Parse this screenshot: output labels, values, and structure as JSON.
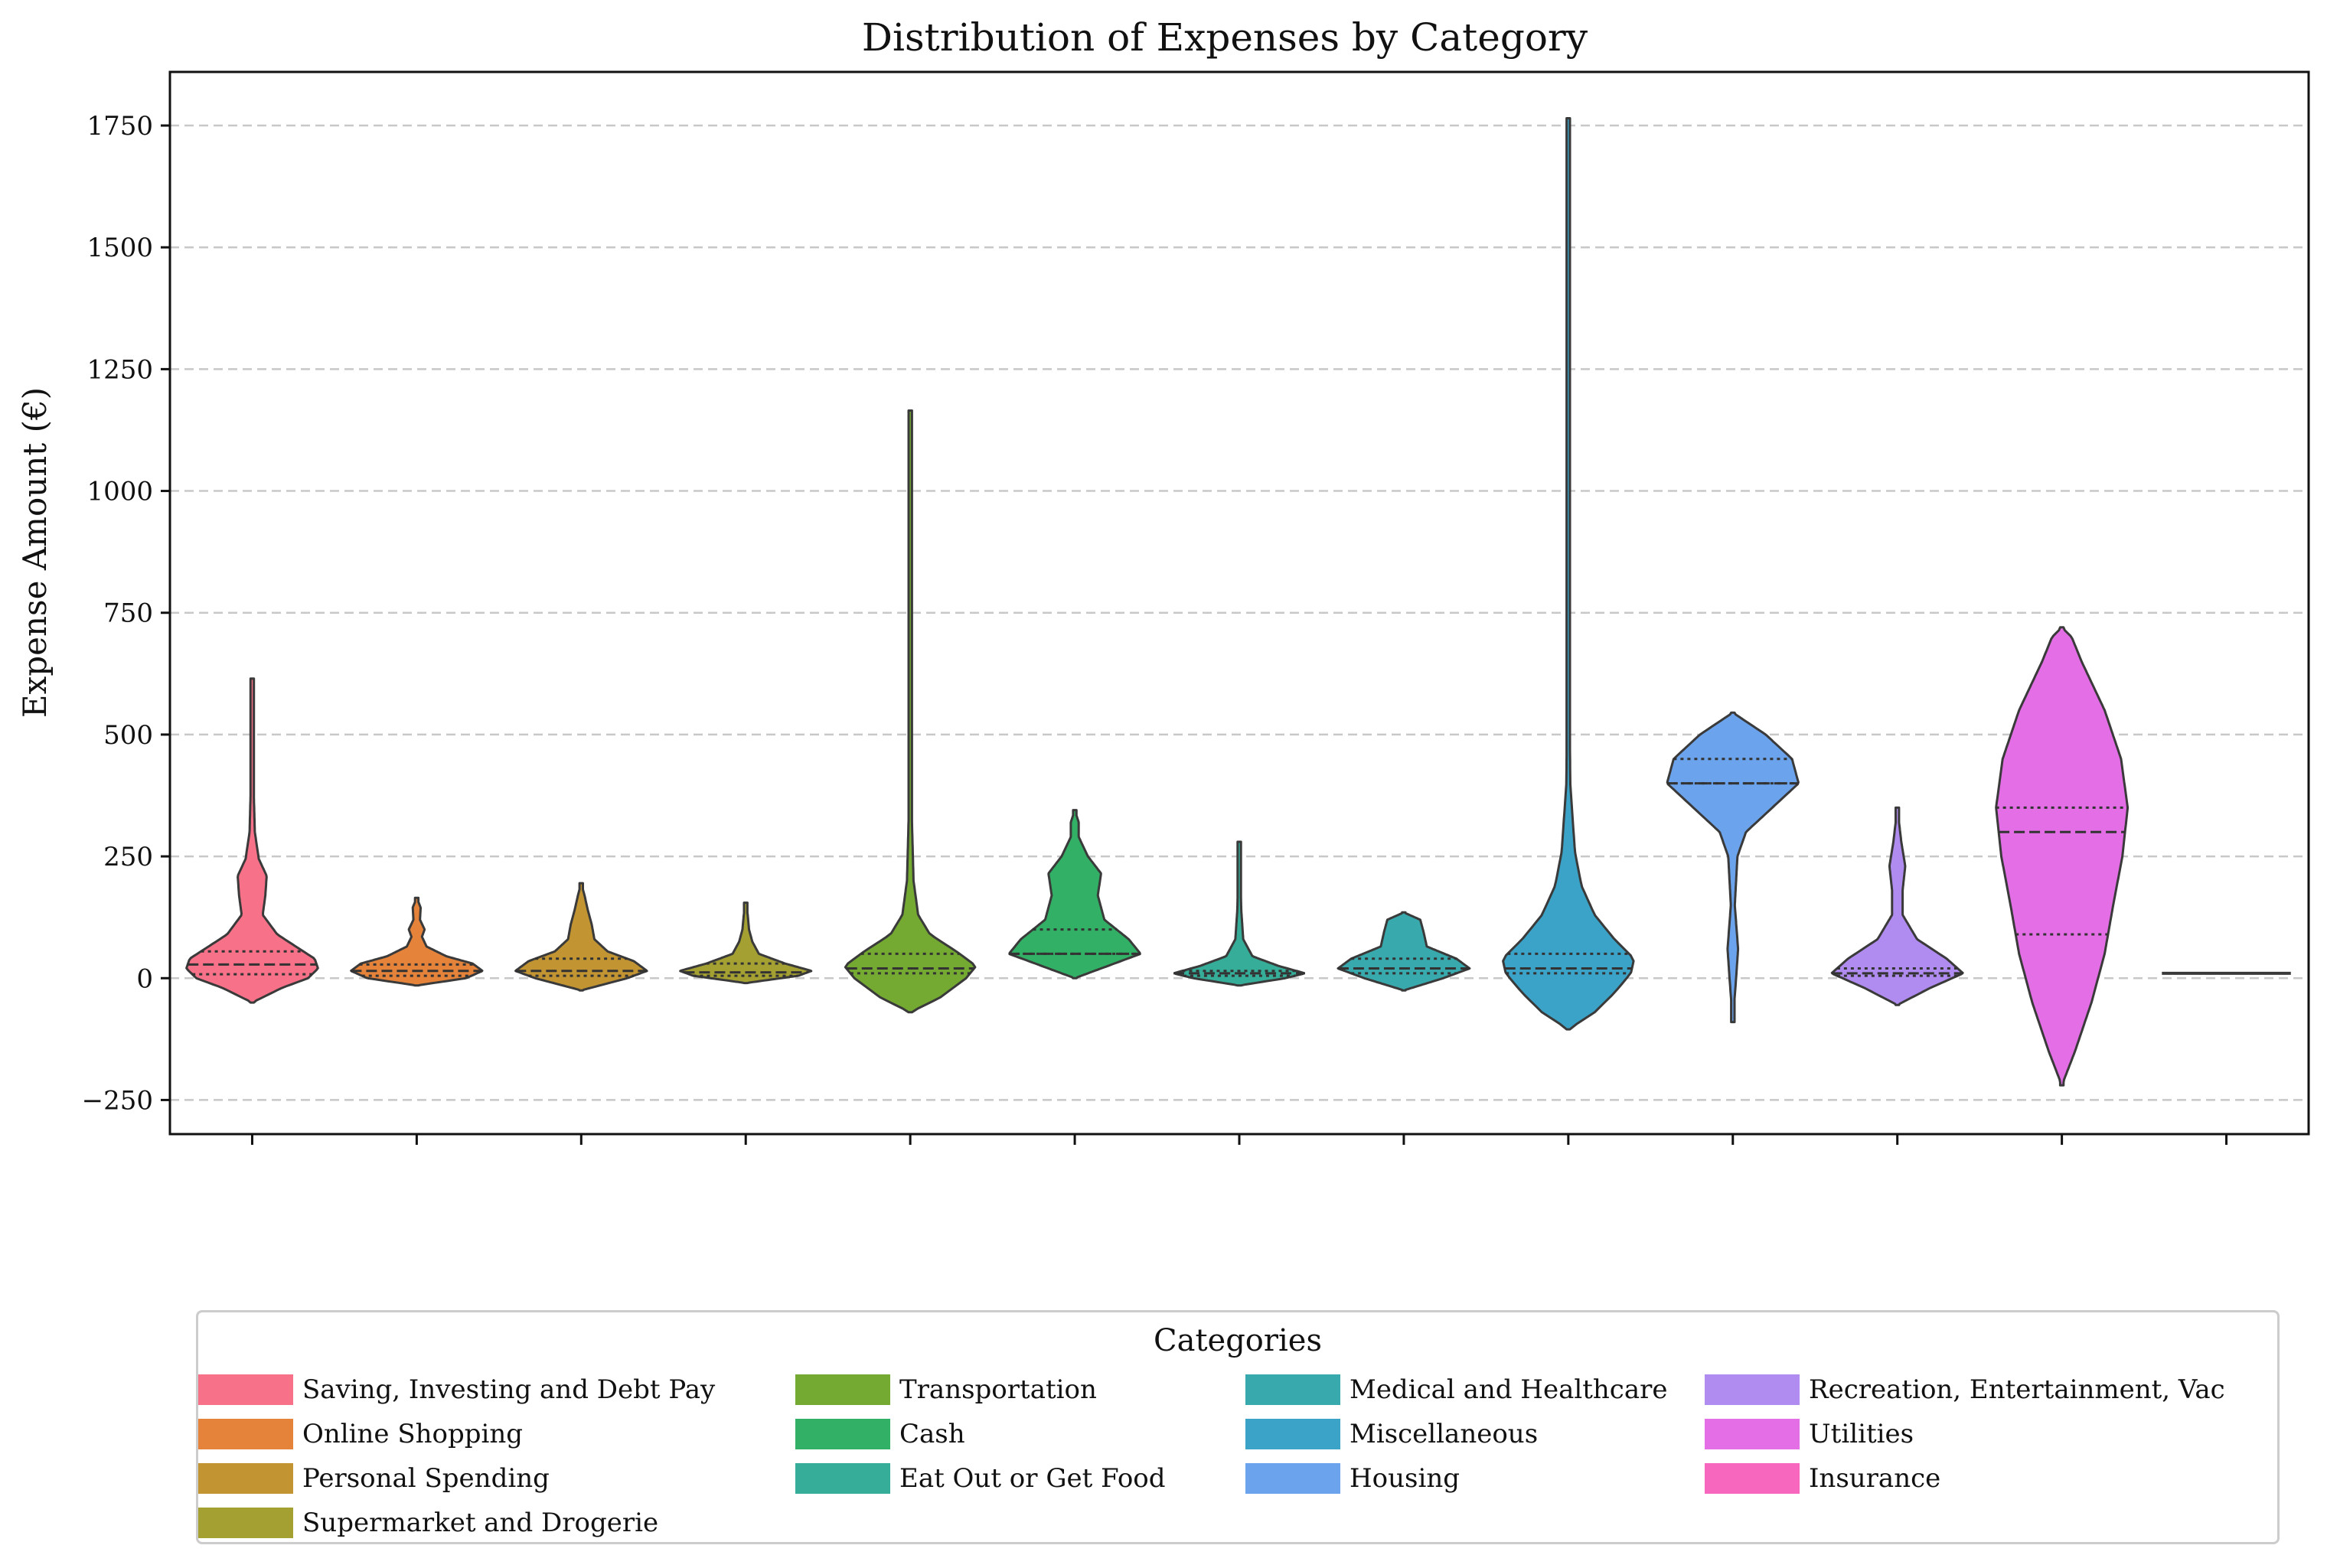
{
  "chart_data": {
    "type": "violin",
    "title": "Distribution of Expenses by Category",
    "xlabel": "",
    "ylabel": "Expense Amount (€)",
    "ylim": [
      -320,
      1860
    ],
    "yticks": [
      -250,
      0,
      250,
      500,
      750,
      1000,
      1250,
      1500,
      1750
    ],
    "ytick_labels": [
      "−250",
      "0",
      "250",
      "500",
      "750",
      "1000",
      "1250",
      "1500",
      "1750"
    ],
    "grid": "horizontal dashed",
    "legend": {
      "title": "Categories",
      "placement": "bottom-center",
      "columns": 4
    },
    "series": [
      {
        "name": "Saving, Investing and Debt Pay",
        "color": "#f77189",
        "min": -50,
        "max": 615,
        "q1": 8,
        "median": 28,
        "q3": 55,
        "profile": [
          [
            -50,
            0
          ],
          [
            -20,
            0.45
          ],
          [
            0,
            0.85
          ],
          [
            20,
            1.0
          ],
          [
            40,
            0.95
          ],
          [
            60,
            0.72
          ],
          [
            90,
            0.38
          ],
          [
            130,
            0.16
          ],
          [
            170,
            0.2
          ],
          [
            210,
            0.22
          ],
          [
            245,
            0.1
          ],
          [
            300,
            0.04
          ],
          [
            400,
            0.02
          ],
          [
            615,
            0
          ]
        ]
      },
      {
        "name": "Online Shopping",
        "color": "#e5833a",
        "min": -15,
        "max": 165,
        "q1": 5,
        "median": 15,
        "q3": 28,
        "profile": [
          [
            -15,
            0
          ],
          [
            0,
            0.75
          ],
          [
            15,
            1.0
          ],
          [
            30,
            0.85
          ],
          [
            45,
            0.45
          ],
          [
            65,
            0.15
          ],
          [
            85,
            0.08
          ],
          [
            100,
            0.12
          ],
          [
            120,
            0.05
          ],
          [
            145,
            0.06
          ],
          [
            165,
            0
          ]
        ]
      },
      {
        "name": "Personal Spending",
        "color": "#c39532",
        "min": -25,
        "max": 195,
        "q1": 5,
        "median": 15,
        "q3": 40,
        "profile": [
          [
            -25,
            0
          ],
          [
            0,
            0.7
          ],
          [
            15,
            1.0
          ],
          [
            35,
            0.8
          ],
          [
            55,
            0.4
          ],
          [
            80,
            0.2
          ],
          [
            110,
            0.16
          ],
          [
            140,
            0.1
          ],
          [
            170,
            0.05
          ],
          [
            195,
            0
          ]
        ]
      },
      {
        "name": "Supermarket and Drogerie",
        "color": "#a4a031",
        "min": -10,
        "max": 155,
        "q1": 5,
        "median": 12,
        "q3": 30,
        "profile": [
          [
            -10,
            0
          ],
          [
            5,
            0.8
          ],
          [
            15,
            1.0
          ],
          [
            30,
            0.6
          ],
          [
            50,
            0.2
          ],
          [
            75,
            0.1
          ],
          [
            100,
            0.05
          ],
          [
            130,
            0.03
          ],
          [
            155,
            0
          ]
        ]
      },
      {
        "name": "Transportation",
        "color": "#74aa31",
        "min": -70,
        "max": 1165,
        "q1": 10,
        "median": 20,
        "q3": 50,
        "profile": [
          [
            -70,
            0
          ],
          [
            -40,
            0.45
          ],
          [
            0,
            0.85
          ],
          [
            25,
            1.0
          ],
          [
            55,
            0.7
          ],
          [
            90,
            0.3
          ],
          [
            130,
            0.12
          ],
          [
            200,
            0.05
          ],
          [
            350,
            0.02
          ],
          [
            700,
            0.01
          ],
          [
            1165,
            0
          ]
        ]
      },
      {
        "name": "Cash",
        "color": "#32b166",
        "min": 0,
        "max": 345,
        "q1": 50,
        "median": 50,
        "q3": 100,
        "profile": [
          [
            0,
            0
          ],
          [
            25,
            0.5
          ],
          [
            50,
            1.0
          ],
          [
            80,
            0.82
          ],
          [
            120,
            0.45
          ],
          [
            170,
            0.35
          ],
          [
            215,
            0.4
          ],
          [
            250,
            0.2
          ],
          [
            290,
            0.06
          ],
          [
            320,
            0.06
          ],
          [
            345,
            0
          ]
        ]
      },
      {
        "name": "Eat Out or Get Food",
        "color": "#36ad98",
        "min": -15,
        "max": 280,
        "q1": 5,
        "median": 10,
        "q3": 15,
        "profile": [
          [
            -15,
            0
          ],
          [
            0,
            0.7
          ],
          [
            10,
            1.0
          ],
          [
            25,
            0.6
          ],
          [
            45,
            0.2
          ],
          [
            80,
            0.06
          ],
          [
            140,
            0.03
          ],
          [
            200,
            0.02
          ],
          [
            280,
            0
          ]
        ]
      },
      {
        "name": "Medical and Healthcare",
        "color": "#38aaae",
        "min": -25,
        "max": 135,
        "q1": 10,
        "median": 20,
        "q3": 40,
        "profile": [
          [
            -25,
            0
          ],
          [
            0,
            0.6
          ],
          [
            20,
            1.0
          ],
          [
            40,
            0.8
          ],
          [
            65,
            0.35
          ],
          [
            95,
            0.3
          ],
          [
            120,
            0.25
          ],
          [
            135,
            0
          ]
        ]
      },
      {
        "name": "Miscellaneous",
        "color": "#3ba3c8",
        "min": -105,
        "max": 1765,
        "q1": 10,
        "median": 20,
        "q3": 50,
        "profile": [
          [
            -105,
            0
          ],
          [
            -70,
            0.4
          ],
          [
            -30,
            0.7
          ],
          [
            10,
            0.95
          ],
          [
            40,
            1.0
          ],
          [
            80,
            0.7
          ],
          [
            130,
            0.4
          ],
          [
            190,
            0.2
          ],
          [
            260,
            0.1
          ],
          [
            400,
            0.03
          ],
          [
            700,
            0.01
          ],
          [
            1765,
            0
          ]
        ]
      },
      {
        "name": "Housing",
        "color": "#6ba3ec",
        "min": -90,
        "max": 545,
        "q1": 400,
        "median": 400,
        "q3": 450,
        "profile": [
          [
            -90,
            0
          ],
          [
            0,
            0.05
          ],
          [
            60,
            0.08
          ],
          [
            150,
            0.03
          ],
          [
            250,
            0.07
          ],
          [
            300,
            0.2
          ],
          [
            350,
            0.6
          ],
          [
            400,
            1.0
          ],
          [
            450,
            0.9
          ],
          [
            500,
            0.5
          ],
          [
            545,
            0
          ]
        ]
      },
      {
        "name": "Recreation, Entertainment, Vac",
        "color": "#b18cf0",
        "min": -55,
        "max": 350,
        "q1": 5,
        "median": 10,
        "q3": 20,
        "profile": [
          [
            -55,
            0
          ],
          [
            -20,
            0.5
          ],
          [
            10,
            1.0
          ],
          [
            40,
            0.75
          ],
          [
            80,
            0.3
          ],
          [
            130,
            0.08
          ],
          [
            180,
            0.08
          ],
          [
            230,
            0.12
          ],
          [
            280,
            0.06
          ],
          [
            350,
            0
          ]
        ]
      },
      {
        "name": "Utilities",
        "color": "#e36ee6",
        "min": -220,
        "max": 720,
        "q1": 90,
        "median": 300,
        "q3": 350,
        "profile": [
          [
            -220,
            0
          ],
          [
            -150,
            0.2
          ],
          [
            -50,
            0.45
          ],
          [
            50,
            0.65
          ],
          [
            150,
            0.78
          ],
          [
            250,
            0.92
          ],
          [
            350,
            1.0
          ],
          [
            450,
            0.9
          ],
          [
            550,
            0.65
          ],
          [
            650,
            0.3
          ],
          [
            700,
            0.15
          ],
          [
            720,
            0
          ]
        ]
      },
      {
        "name": "Insurance",
        "color": "#f667bd",
        "min": 10,
        "max": 10,
        "q1": 10,
        "median": 10,
        "q3": 10,
        "profile": []
      }
    ]
  }
}
